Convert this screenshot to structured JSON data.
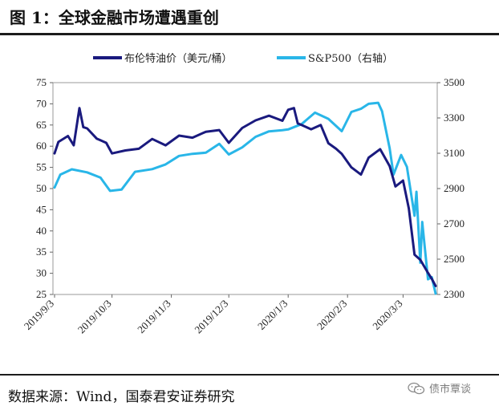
{
  "header": {
    "title": "图 1：全球金融市场遭遇重创"
  },
  "footer": {
    "source": "数据来源：Wind，国泰君安证券研究",
    "watermark": "债市覃谈",
    "watermark_icon": "wechat-icon"
  },
  "chart_data": {
    "type": "line",
    "x_ticks": [
      "2019/9/3",
      "2019/10/3",
      "2019/11/3",
      "2019/12/3",
      "2020/1/3",
      "2020/2/3",
      "2020/3/3"
    ],
    "x_range": [
      "2019/9/3",
      "2020/3/20"
    ],
    "left_axis": {
      "ticks": [
        "75",
        "70",
        "65",
        "60",
        "55",
        "50",
        "45",
        "40",
        "35",
        "30",
        "25"
      ],
      "range": [
        25,
        75
      ]
    },
    "right_axis": {
      "ticks": [
        "3500",
        "3300",
        "3100",
        "2900",
        "2700",
        "2500",
        "2300"
      ],
      "range": [
        2300,
        3500
      ]
    },
    "grid": false,
    "legend_position": "top",
    "series": [
      {
        "name": "布伦特油价（美元/桶）",
        "axis": "left",
        "color": "#1a1a7e",
        "x": [
          "2019/9/3",
          "2019/9/5",
          "2019/9/10",
          "2019/9/13",
          "2019/9/16",
          "2019/9/18",
          "2019/9/20",
          "2019/9/25",
          "2019/9/30",
          "2019/10/3",
          "2019/10/10",
          "2019/10/17",
          "2019/10/24",
          "2019/10/31",
          "2019/11/7",
          "2019/11/14",
          "2019/11/21",
          "2019/11/28",
          "2019/12/3",
          "2019/12/10",
          "2019/12/17",
          "2019/12/24",
          "2019/12/31",
          "2020/1/3",
          "2020/1/6",
          "2020/1/8",
          "2020/1/10",
          "2020/1/15",
          "2020/1/20",
          "2020/1/24",
          "2020/1/28",
          "2020/1/31",
          "2020/2/5",
          "2020/2/10",
          "2020/2/14",
          "2020/2/20",
          "2020/2/25",
          "2020/2/28",
          "2020/3/3",
          "2020/3/6",
          "2020/3/9",
          "2020/3/12",
          "2020/3/16",
          "2020/3/18",
          "2020/3/20"
        ],
        "values": [
          58.3,
          61.0,
          62.4,
          60.2,
          69.0,
          64.5,
          64.2,
          61.8,
          60.8,
          58.3,
          59.0,
          59.4,
          61.7,
          60.2,
          62.5,
          62.0,
          63.4,
          63.8,
          60.8,
          64.3,
          66.1,
          67.2,
          66.0,
          68.6,
          69.0,
          65.4,
          65.0,
          64.0,
          65.0,
          60.7,
          59.4,
          58.2,
          55.0,
          53.3,
          57.3,
          59.3,
          55.3,
          50.5,
          51.9,
          45.3,
          34.4,
          33.2,
          30.1,
          28.7,
          27.0
        ]
      },
      {
        "name": "S&P500（右轴）",
        "axis": "right",
        "color": "#29b6e8",
        "x": [
          "2019/9/3",
          "2019/9/6",
          "2019/9/12",
          "2019/9/20",
          "2019/9/27",
          "2019/10/2",
          "2019/10/8",
          "2019/10/15",
          "2019/10/24",
          "2019/10/31",
          "2019/11/7",
          "2019/11/14",
          "2019/11/21",
          "2019/11/28",
          "2019/12/3",
          "2019/12/10",
          "2019/12/17",
          "2019/12/24",
          "2019/12/31",
          "2020/1/3",
          "2020/1/10",
          "2020/1/17",
          "2020/1/24",
          "2020/1/31",
          "2020/2/5",
          "2020/2/10",
          "2020/2/14",
          "2020/2/19",
          "2020/2/21",
          "2020/2/25",
          "2020/2/27",
          "2020/3/2",
          "2020/3/5",
          "2020/3/9",
          "2020/3/10",
          "2020/3/12",
          "2020/3/13",
          "2020/3/16",
          "2020/3/18",
          "2020/3/20"
        ],
        "values": [
          2906,
          2979,
          3009,
          2992,
          2962,
          2887,
          2894,
          2995,
          3010,
          3037,
          3085,
          3097,
          3103,
          3153,
          3093,
          3133,
          3193,
          3224,
          3231,
          3235,
          3265,
          3330,
          3295,
          3225,
          3334,
          3352,
          3380,
          3386,
          3338,
          3128,
          2979,
          3090,
          3023,
          2746,
          2882,
          2480,
          2711,
          2386,
          2398,
          2305
        ]
      }
    ]
  }
}
